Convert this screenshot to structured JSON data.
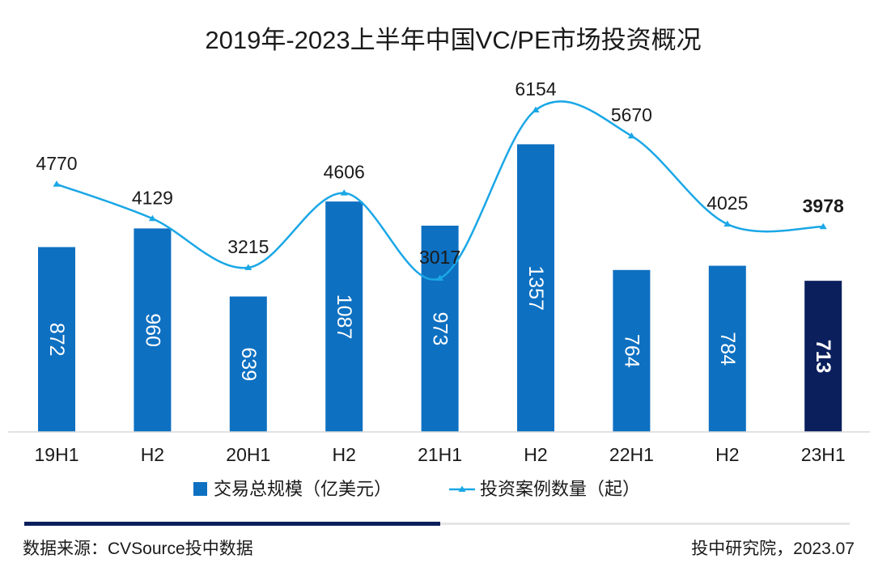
{
  "chart_data": {
    "type": "bar",
    "title": "2019年-2023上半年中国VC/PE市场投资概况",
    "categories": [
      "19H1",
      "H2",
      "20H1",
      "H2",
      "21H1",
      "H2",
      "22H1",
      "H2",
      "23H1"
    ],
    "series": [
      {
        "name": "交易总规模（亿美元）",
        "kind": "bar",
        "values": [
          872,
          960,
          639,
          1087,
          973,
          1357,
          764,
          784,
          713
        ],
        "color": "#0e70c1",
        "highlight_color": "#0a1f5c",
        "highlight_index": 8
      },
      {
        "name": "投资案例数量（起）",
        "kind": "line",
        "values": [
          4770,
          4129,
          3215,
          4606,
          3017,
          6154,
          5670,
          4025,
          3978
        ],
        "color": "#1aa7e6"
      }
    ],
    "bar_ylim": [
      0,
      1450
    ],
    "line_ylim": [
      2200,
      7000
    ],
    "legend_position": "bottom"
  },
  "footer": {
    "source": "数据来源：CVSource投中数据",
    "credit": "投中研究院，2023.07"
  }
}
